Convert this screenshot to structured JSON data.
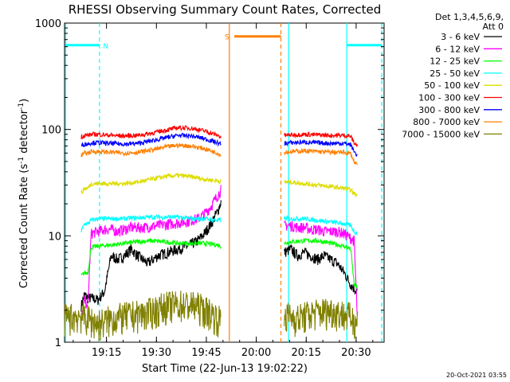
{
  "chart_data": {
    "type": "line",
    "title": "RHESSI Observing Summary Count Rates, Corrected",
    "xlabel": "Start Time (22-Jun-13 19:02:22)",
    "ylabel_main": "Corrected Count Rate (s",
    "ylabel_sup1": "-1",
    "ylabel_mid": " detector",
    "ylabel_sup2": "-1",
    "ylabel_end": ")",
    "y_scale": "log",
    "ylim": [
      1,
      1000
    ],
    "xlim_minutes": [
      0,
      96
    ],
    "x_ticks": [
      {
        "label": "19:15",
        "minute": 12.6
      },
      {
        "label": "19:30",
        "minute": 27.6
      },
      {
        "label": "19:45",
        "minute": 42.6
      },
      {
        "label": "20:00",
        "minute": 57.6
      },
      {
        "label": "20:15",
        "minute": 72.6
      },
      {
        "label": "20:30",
        "minute": 87.6
      }
    ],
    "y_ticks": [
      {
        "label": "1",
        "value": 1
      },
      {
        "label": "10",
        "value": 10
      },
      {
        "label": "100",
        "value": 100
      },
      {
        "label": "1000",
        "value": 1000
      }
    ],
    "legend_header": [
      "Det 1,3,4,5,6,9,",
      "Att 0"
    ],
    "legend_placement": "right",
    "series": [
      {
        "name": "3 - 6 keV",
        "color": "#000000",
        "x": [
          5,
          6,
          7,
          8,
          10,
          12,
          14,
          16,
          18,
          20,
          22,
          25,
          28,
          31,
          34,
          37,
          40,
          42,
          44,
          46,
          47
        ],
        "y": [
          2.2,
          2.8,
          2.6,
          2.6,
          2.5,
          3.0,
          6.5,
          6.0,
          6.5,
          7.5,
          6.5,
          5.5,
          6.5,
          7.0,
          7.5,
          8.0,
          9.0,
          10.5,
          13,
          17,
          21
        ],
        "x2": [
          66,
          68,
          70,
          72,
          74,
          76,
          78,
          80,
          82,
          84,
          86,
          87,
          88
        ],
        "y2": [
          7.0,
          7.5,
          6.5,
          7.0,
          6.5,
          6.0,
          6.5,
          6.0,
          5.5,
          4.5,
          3.5,
          3.2,
          3.0
        ]
      },
      {
        "name": "6 - 12 keV",
        "color": "#ff00ff",
        "x": [
          5,
          6,
          7,
          8,
          10,
          12,
          14,
          16,
          18,
          20,
          24,
          28,
          32,
          36,
          40,
          42,
          44,
          46,
          47
        ],
        "y": [
          1.6,
          2.5,
          2.2,
          10.5,
          11.0,
          11.5,
          11.5,
          11.0,
          11.5,
          12.0,
          12.0,
          12.5,
          13.0,
          13.5,
          14.5,
          16,
          19,
          24,
          27
        ],
        "x2": [
          66,
          68,
          70,
          72,
          74,
          76,
          78,
          80,
          82,
          84,
          86,
          87,
          88
        ],
        "y2": [
          12.5,
          12.5,
          12.0,
          12.0,
          11.5,
          11.5,
          11.0,
          11.0,
          11.0,
          10.5,
          9.5,
          9.0,
          1.6
        ]
      },
      {
        "name": "12 - 25 keV",
        "color": "#00ff00",
        "x": [
          5,
          6,
          7,
          8,
          10,
          14,
          18,
          22,
          26,
          30,
          34,
          38,
          42,
          46,
          47
        ],
        "y": [
          4.2,
          4.5,
          4.5,
          7.8,
          8.0,
          8.2,
          8.5,
          8.8,
          9.0,
          8.8,
          8.5,
          8.5,
          8.5,
          8.2,
          8.0
        ],
        "x2": [
          66,
          68,
          72,
          76,
          80,
          84,
          86,
          87,
          88
        ],
        "y2": [
          8.5,
          8.8,
          9.0,
          9.0,
          8.5,
          8.0,
          7.5,
          3.5,
          3.2
        ]
      },
      {
        "name": "25 - 50 keV",
        "color": "#00ffff",
        "x": [
          5,
          6,
          7,
          8,
          10,
          14,
          18,
          22,
          26,
          30,
          34,
          38,
          42,
          46,
          47
        ],
        "y": [
          11.0,
          13.0,
          13.0,
          14.0,
          14.5,
          14.5,
          14.5,
          14.8,
          15.0,
          15.0,
          15.0,
          14.5,
          14.5,
          14.0,
          14.0
        ],
        "x2": [
          66,
          68,
          72,
          76,
          80,
          84,
          86,
          87,
          88
        ],
        "y2": [
          14.5,
          14.5,
          14.5,
          14.0,
          13.5,
          13.0,
          12.5,
          11.0,
          10.5
        ]
      },
      {
        "name": "50 - 100 keV",
        "color": "#dddd00",
        "x": [
          5,
          6,
          7,
          8,
          10,
          14,
          18,
          22,
          26,
          30,
          34,
          38,
          42,
          46,
          47
        ],
        "y": [
          25,
          28,
          28,
          31,
          31,
          31,
          31,
          32,
          34,
          36,
          37,
          36,
          34,
          33,
          32
        ],
        "x2": [
          66,
          68,
          72,
          76,
          80,
          84,
          86,
          87,
          88
        ],
        "y2": [
          32,
          32,
          31,
          30,
          29,
          28,
          27,
          25,
          24
        ]
      },
      {
        "name": "100 - 300 keV",
        "color": "#ff0000",
        "x": [
          5,
          6,
          7,
          8,
          10,
          14,
          18,
          22,
          26,
          30,
          34,
          38,
          42,
          46,
          47
        ],
        "y": [
          85,
          88,
          88,
          90,
          90,
          88,
          87,
          88,
          92,
          98,
          104,
          103,
          97,
          88,
          85
        ],
        "x2": [
          66,
          68,
          72,
          76,
          80,
          84,
          86,
          87,
          88
        ],
        "y2": [
          88,
          89,
          90,
          89,
          88,
          88,
          86,
          75,
          70
        ]
      },
      {
        "name": "300 - 800 keV",
        "color": "#0000ff",
        "x": [
          5,
          6,
          7,
          8,
          10,
          14,
          18,
          22,
          26,
          30,
          34,
          38,
          42,
          46,
          47
        ],
        "y": [
          70,
          73,
          73,
          75,
          75,
          74,
          73,
          74,
          78,
          83,
          88,
          87,
          82,
          75,
          72
        ],
        "x2": [
          66,
          68,
          72,
          76,
          80,
          84,
          86,
          87,
          88
        ],
        "y2": [
          74,
          75,
          76,
          75,
          74,
          74,
          72,
          62,
          57
        ]
      },
      {
        "name": "800 - 7000 keV",
        "color": "#ff8000",
        "x": [
          5,
          6,
          7,
          8,
          10,
          14,
          18,
          22,
          26,
          30,
          34,
          38,
          42,
          46,
          47
        ],
        "y": [
          57,
          60,
          60,
          62,
          62,
          61,
          60,
          61,
          64,
          68,
          71,
          70,
          66,
          60,
          57
        ],
        "x2": [
          66,
          68,
          72,
          76,
          80,
          84,
          86,
          87,
          88
        ],
        "y2": [
          61,
          62,
          63,
          62,
          61,
          61,
          59,
          50,
          46
        ]
      },
      {
        "name": "7000 - 15000 keV",
        "color": "#808000",
        "x": [
          0,
          5,
          10,
          15,
          20,
          25,
          30,
          35,
          40,
          44,
          47
        ],
        "y": [
          1.7,
          1.8,
          1.5,
          1.7,
          1.8,
          1.9,
          2.2,
          2.3,
          2.2,
          1.9,
          1.6
        ],
        "x2": [
          66,
          70,
          75,
          80,
          85,
          88
        ],
        "y2": [
          1.8,
          1.7,
          1.9,
          2.0,
          1.8,
          1.6
        ]
      }
    ],
    "vertical_lines": [
      {
        "minute": 0.3,
        "color": "#00ffff",
        "style": "solid"
      },
      {
        "minute": 10.5,
        "color": "#00ffff",
        "style": "dashed"
      },
      {
        "minute": 49.5,
        "color": "#ff8000",
        "style": "solid"
      },
      {
        "minute": 65.0,
        "color": "#ff8000",
        "style": "dashed"
      },
      {
        "minute": 67.3,
        "color": "#00ffff",
        "style": "solid"
      },
      {
        "minute": 84.8,
        "color": "#00ffff",
        "style": "solid"
      },
      {
        "minute": 95.3,
        "color": "#00ffff",
        "style": "dashed"
      }
    ],
    "horizontal_markers": [
      {
        "x0": 0.3,
        "x1": 10.5,
        "value": 620,
        "color": "#00ffff",
        "label": "N",
        "label_minute": 12.4
      },
      {
        "x0": 51.0,
        "x1": 65.0,
        "value": 750,
        "color": "#ff8000",
        "label": "S",
        "label_minute": 48.8
      },
      {
        "x0": 84.8,
        "x1": 95.3,
        "value": 620,
        "color": "#00ffff",
        "label": "",
        "label_minute": 0
      }
    ]
  },
  "footer": {
    "timestamp": "20-Oct-2021 03:55"
  }
}
